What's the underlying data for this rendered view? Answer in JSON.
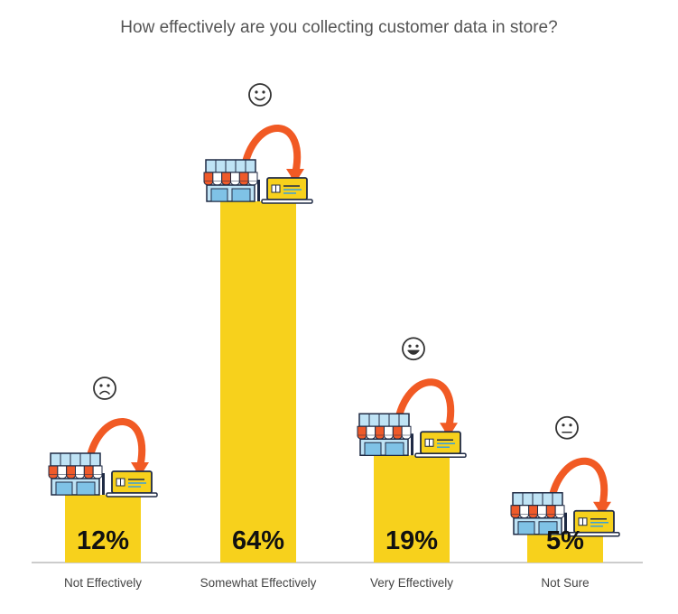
{
  "chart_data": {
    "type": "bar",
    "title": "How effectively are you collecting customer data in store?",
    "categories": [
      "Not Effectively",
      "Somewhat Effectively",
      "Very Effectively",
      "Not Sure"
    ],
    "values": [
      12,
      64,
      19,
      5
    ],
    "value_labels": [
      "12%",
      "64%",
      "19%",
      "5%"
    ],
    "icons": [
      "frowning-face-icon",
      "slightly-smiling-face-icon",
      "grinning-face-icon",
      "neutral-face-icon"
    ],
    "colors": {
      "bar": "#F7D11C",
      "arrow": "#F15A24",
      "awning": "#EF5A2A",
      "store": "#BFE3F5",
      "laptop_screen": "#F7D11C",
      "axis": "#999999"
    },
    "ylim": [
      0,
      64
    ],
    "grid": false
  }
}
